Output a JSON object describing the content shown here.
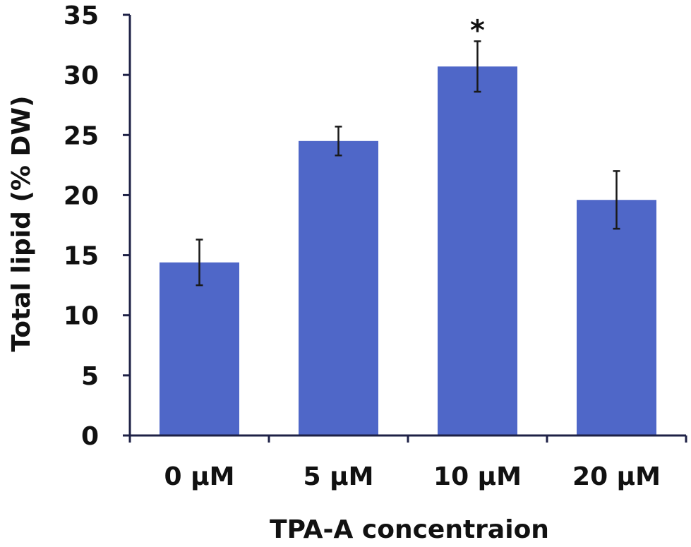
{
  "chart_data": {
    "type": "bar",
    "categories": [
      "0 µM",
      "5 µM",
      "10 µM",
      "20 µM"
    ],
    "values": [
      14.4,
      24.5,
      30.7,
      19.6
    ],
    "errors": [
      1.9,
      1.2,
      2.1,
      2.4
    ],
    "annotations": [
      "",
      "",
      "*",
      ""
    ],
    "title": "",
    "xlabel": "TPA-A concentraion",
    "ylabel": "Total lipid (% DW)",
    "ylim": [
      0,
      35
    ],
    "yticks": [
      "0",
      "5",
      "10",
      "15",
      "20",
      "25",
      "30",
      "35"
    ],
    "grid": false,
    "colors": {
      "bar": "#4f67c8",
      "axis": "#1e2146",
      "error": "#1a1a1a"
    }
  }
}
